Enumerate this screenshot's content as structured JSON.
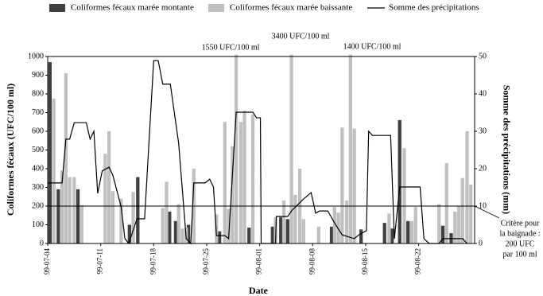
{
  "chart_data": {
    "type": "bar",
    "legend": "top",
    "xlabel": "Date",
    "ylabel": "Coliformes fécaux (UFC/100 ml)",
    "y2label": "Somme des précipitations (mm)",
    "xlim": [
      0,
      56.4
    ],
    "xticks": [
      {
        "value": 0,
        "label": "99-07-04"
      },
      {
        "value": 7,
        "label": "99-07-11"
      },
      {
        "value": 14,
        "label": "99-07-18"
      },
      {
        "value": 21,
        "label": "99-07-25"
      },
      {
        "value": 28,
        "label": "99-08-01"
      },
      {
        "value": 35,
        "label": "99-08-08"
      },
      {
        "value": 42,
        "label": "99-08-15"
      },
      {
        "value": 49,
        "label": "99-08-22"
      }
    ],
    "ylim": [
      0,
      1000
    ],
    "yticks": [
      0,
      100,
      200,
      300,
      400,
      500,
      600,
      700,
      800,
      900,
      1000
    ],
    "y2lim": [
      0,
      50
    ],
    "y2ticks": [
      0,
      10,
      20,
      30,
      40,
      50
    ],
    "reference_line": {
      "value": 200,
      "color": "#000000",
      "label": [
        "Critère pour",
        "la baignade :",
        "200 UFC",
        "par 100 ml"
      ]
    },
    "annotations": [
      "1550 UFC/100 ml",
      "3400 UFC/100 ml",
      "1400 UFC/100 ml"
    ],
    "series": [
      {
        "name": "Coliformes fécaux marée montante",
        "type": "bar",
        "color": "#404040",
        "x": [
          0.3,
          1.4,
          4.0,
          10.8,
          11.9,
          16.1,
          16.9,
          18.6,
          22.7,
          26.6,
          29.7,
          30.8,
          31.7,
          37.5,
          41.4,
          44.5,
          45.5,
          46.5,
          47.6,
          52.2,
          53.3
        ],
        "values": [
          970,
          290,
          290,
          100,
          355,
          170,
          120,
          100,
          65,
          85,
          90,
          140,
          130,
          90,
          75,
          110,
          80,
          660,
          120,
          95,
          55
        ]
      },
      {
        "name": "Coliformes fécaux marée baissante",
        "type": "bar",
        "color": "#c0c0c0",
        "x": [
          0.8,
          1.9,
          2.4,
          2.9,
          3.5,
          4.5,
          7.6,
          8.1,
          8.6,
          9.7,
          11.3,
          15.2,
          15.7,
          17.3,
          17.8,
          18.3,
          19.3,
          22.3,
          23.4,
          23.9,
          24.4,
          24.9,
          25.5,
          26.0,
          27.1,
          30.1,
          31.2,
          32.2,
          32.7,
          33.3,
          33.8,
          35.8,
          37.9,
          38.4,
          38.9,
          39.5,
          40.0,
          40.5,
          45.1,
          47.1,
          48.1,
          48.6,
          51.7,
          52.7,
          53.8,
          54.3,
          54.8,
          55.4,
          55.9
        ],
        "values": [
          775,
          390,
          910,
          355,
          355,
          205,
          480,
          600,
          280,
          240,
          275,
          190,
          330,
          210,
          80,
          85,
          400,
          155,
          650,
          185,
          520,
          1010,
          650,
          710,
          690,
          140,
          230,
          1010,
          260,
          400,
          130,
          90,
          195,
          165,
          620,
          230,
          1010,
          615,
          160,
          510,
          120,
          195,
          210,
          430,
          170,
          200,
          350,
          600,
          315
        ]
      },
      {
        "name": "Somme des précipitations",
        "type": "line",
        "axis": "y2",
        "color": "#000000",
        "x": [
          0,
          1.9,
          2.4,
          2.9,
          3.5,
          5.1,
          5.6,
          6.1,
          6.6,
          7.2,
          8.1,
          8.6,
          9.7,
          10.2,
          10.7,
          11.8,
          12.8,
          14,
          14.6,
          15.2,
          16.2,
          17.3,
          18.3,
          18.9,
          19.3,
          20.8,
          21.4,
          21.9,
          22.3,
          23.4,
          23.9,
          24.9,
          27.1,
          27.6,
          28.1,
          28.2,
          30.1,
          30.2,
          31.7,
          32.2,
          33.8,
          34.8,
          35.4,
          35.9,
          37,
          37.9,
          38.9,
          40.5,
          41.1,
          42.1,
          42.4,
          42.9,
          45.3,
          45.8,
          46.5,
          49.2,
          49.7,
          50.4,
          51.7,
          52.2,
          54.8,
          55.4
        ],
        "values": [
          16.2,
          16.2,
          27.9,
          27.9,
          32.3,
          32.3,
          27.9,
          30,
          13.4,
          19.4,
          20.4,
          18.3,
          9.8,
          1.3,
          0,
          6.6,
          6.6,
          48.9,
          48.9,
          42.6,
          42.6,
          26.8,
          1.3,
          0,
          16.2,
          16.2,
          17.2,
          15.1,
          2.1,
          2.1,
          1.3,
          35.1,
          35.1,
          33.6,
          33.6,
          0,
          0,
          7.2,
          7.2,
          8.7,
          11.9,
          13.6,
          8.1,
          8.7,
          8.7,
          5.5,
          2.3,
          1.3,
          2.3,
          3.4,
          30,
          28.9,
          28.9,
          1.3,
          15.1,
          15.1,
          1.3,
          0,
          0,
          1.3,
          1.3,
          0
        ]
      }
    ]
  }
}
